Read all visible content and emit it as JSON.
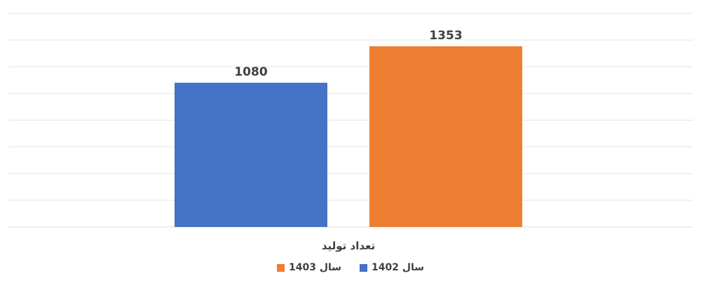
{
  "chart_data": {
    "type": "bar",
    "categories": [
      "تعداد تولید"
    ],
    "series": [
      {
        "name": "سال 1402",
        "values": [
          1080
        ],
        "color": "#4472C4"
      },
      {
        "name": "سال 1403",
        "values": [
          1353
        ],
        "color": "#ED7D31"
      }
    ],
    "ylim": [
      0,
      1600
    ],
    "grid": true,
    "legend_position": "bottom"
  }
}
